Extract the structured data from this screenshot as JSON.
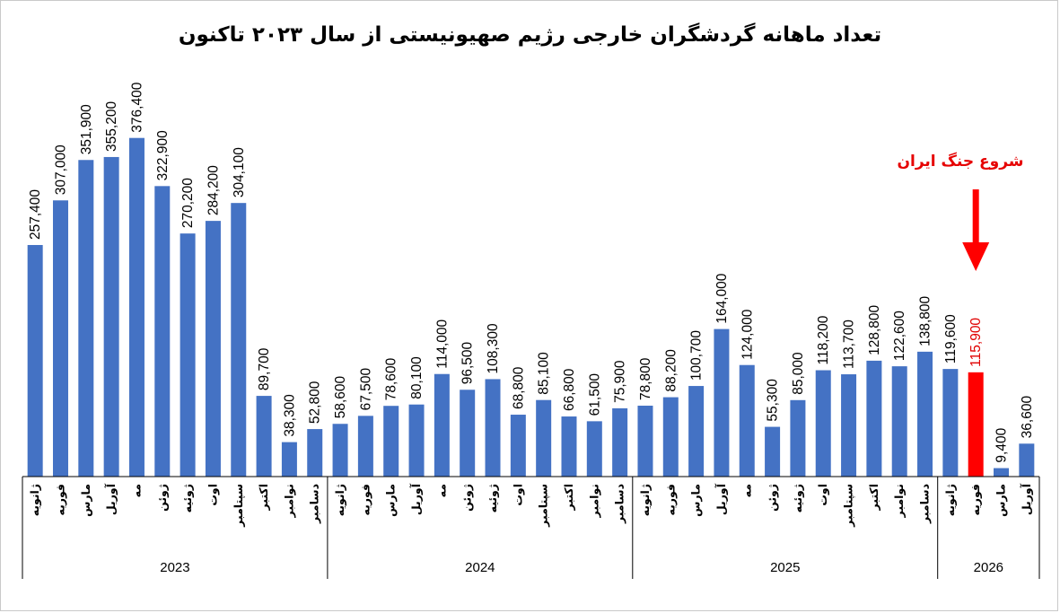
{
  "chart_data": {
    "type": "bar",
    "title": "تعداد ماهانه گردشگران خارجی رژیم صهیونیستی از سال ۲۰۲۳ تاکنون",
    "ylim": [
      0,
      420000
    ],
    "grid": false,
    "bar_color": "#4472c4",
    "highlight_color": "#ff0000",
    "annotation": "شروع جنگ ایران",
    "categories": [
      "ژانویه",
      "فوریه",
      "مارس",
      "آوریل",
      "مه",
      "ژوئن",
      "ژوئیه",
      "اوت",
      "سپتامبر",
      "اکتبر",
      "نوامبر",
      "دسامبر",
      "ژانویه",
      "فوریه",
      "مارس",
      "آوریل",
      "مه",
      "ژوئن",
      "ژوئیه",
      "اوت",
      "سپتامبر",
      "اکتبر",
      "نوامبر",
      "دسامبر",
      "ژانویه",
      "فوریه",
      "مارس",
      "آوریل",
      "مه",
      "ژوئن",
      "ژوئیه",
      "اوت",
      "سپتامبر",
      "اکتبر",
      "نوامبر",
      "دسامبر",
      "ژانویه",
      "فوریه",
      "مارس",
      "آوریل"
    ],
    "values": [
      257400,
      307000,
      351900,
      355200,
      376400,
      322900,
      270200,
      284200,
      304100,
      89700,
      38300,
      52800,
      58600,
      67500,
      78600,
      80100,
      114000,
      96500,
      108300,
      68800,
      85100,
      66800,
      61500,
      75900,
      78800,
      88200,
      100700,
      164000,
      124000,
      55300,
      85000,
      118200,
      113700,
      128800,
      122600,
      138800,
      119600,
      115900,
      9400,
      36600
    ],
    "value_labels": [
      "257,400",
      "307,000",
      "351,900",
      "355,200",
      "376,400",
      "322,900",
      "270,200",
      "284,200",
      "304,100",
      "89,700",
      "38,300",
      "52,800",
      "58,600",
      "67,500",
      "78,600",
      "80,100",
      "114,000",
      "96,500",
      "108,300",
      "68,800",
      "85,100",
      "66,800",
      "61,500",
      "75,900",
      "78,800",
      "88,200",
      "100,700",
      "164,000",
      "124,000",
      "55,300",
      "85,000",
      "118,200",
      "113,700",
      "128,800",
      "122,600",
      "138,800",
      "119,600",
      "115,900",
      "9,400",
      "36,600"
    ],
    "highlight_index": 37,
    "groups": [
      {
        "label": "2023",
        "count": 12
      },
      {
        "label": "2024",
        "count": 12
      },
      {
        "label": "2025",
        "count": 12
      },
      {
        "label": "2026",
        "count": 4
      }
    ]
  }
}
